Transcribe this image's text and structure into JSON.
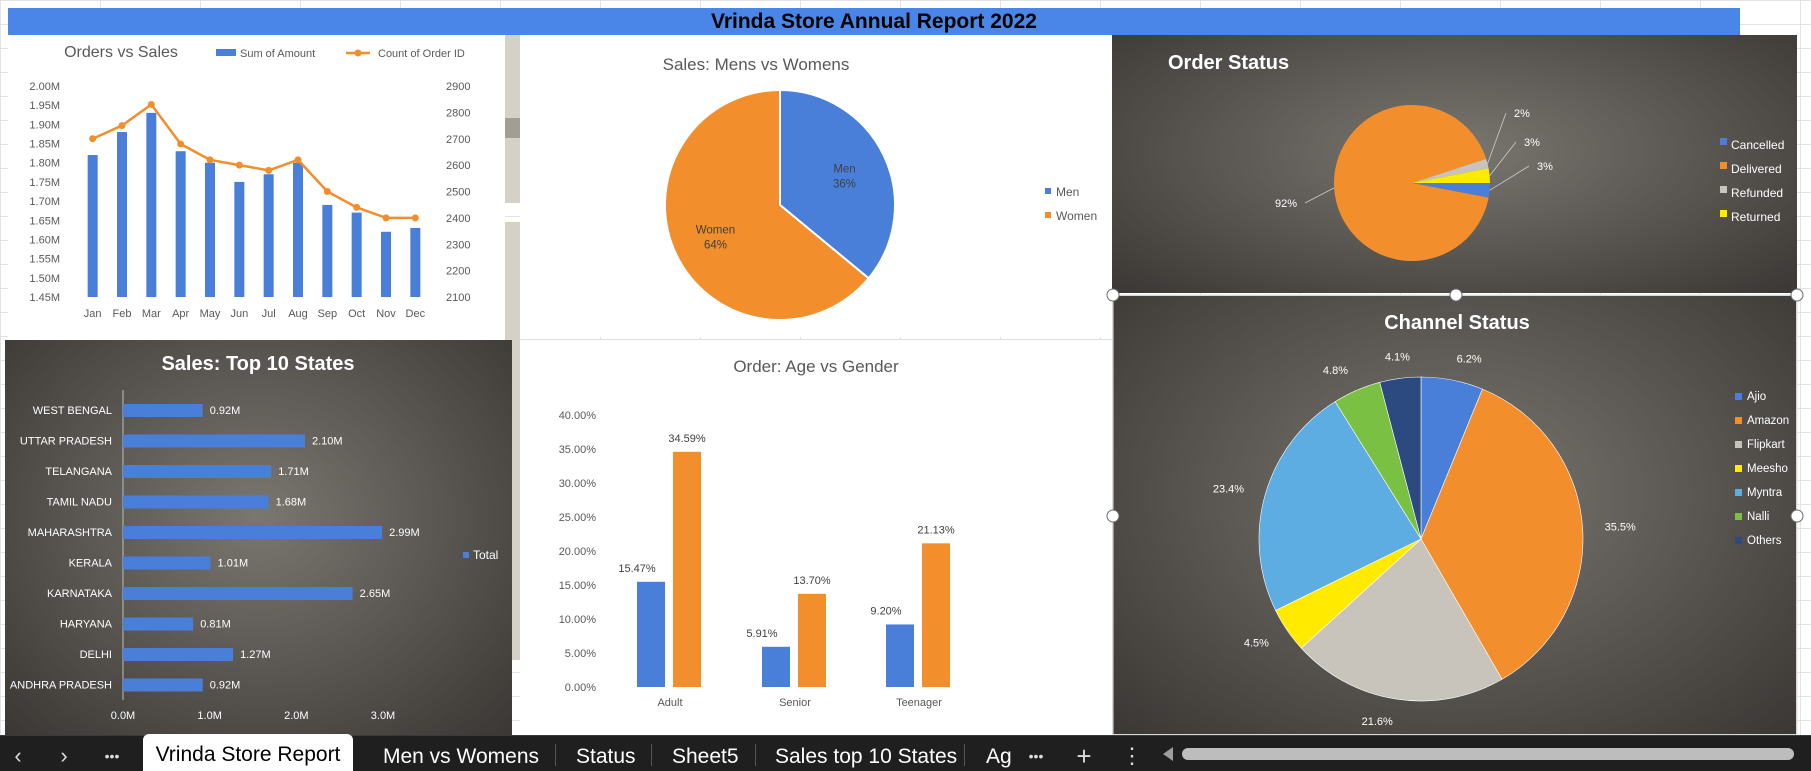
{
  "report_title": "Vrinda Store Annual Report 2022",
  "tabs": [
    "Vrinda Store Report",
    "Men vs Womens",
    "Status",
    "Sheet5",
    "Sales top 10 States",
    "Ag"
  ],
  "nav": {
    "prev": "‹",
    "next": "›",
    "more": "•••",
    "more2": "•••",
    "add": "+",
    "options": "⋮"
  },
  "colors": {
    "blue": "#4a7fd9",
    "orange": "#f28e2b",
    "gray": "#c9c4bb",
    "yellow": "#ffea00",
    "lightblue": "#5dade2",
    "green": "#7ac143",
    "navy": "#2c4a80"
  },
  "chart_data": [
    {
      "id": "orders_vs_sales",
      "type": "bar",
      "title": "Orders vs Sales",
      "categories": [
        "Jan",
        "Feb",
        "Mar",
        "Apr",
        "May",
        "Jun",
        "Jul",
        "Aug",
        "Sep",
        "Oct",
        "Nov",
        "Dec"
      ],
      "series": [
        {
          "name": "Sum of Amount",
          "type": "bar",
          "axis": "left",
          "values": [
            1.82,
            1.88,
            1.93,
            1.83,
            1.8,
            1.75,
            1.77,
            1.8,
            1.69,
            1.67,
            1.62,
            1.63
          ]
        },
        {
          "name": "Count of Order ID",
          "type": "line",
          "axis": "right",
          "values": [
            2700,
            2750,
            2830,
            2680,
            2620,
            2600,
            2580,
            2620,
            2500,
            2440,
            2400,
            2400
          ]
        }
      ],
      "y_left_ticks": [
        "2.00M",
        "1.95M",
        "1.90M",
        "1.85M",
        "1.80M",
        "1.75M",
        "1.70M",
        "1.65M",
        "1.60M",
        "1.55M",
        "1.50M",
        "1.45M"
      ],
      "ylim_left": [
        1.45,
        2.0
      ],
      "y_right_ticks": [
        "2900",
        "2800",
        "2700",
        "2600",
        "2500",
        "2400",
        "2300",
        "2200",
        "2100"
      ],
      "ylim_right": [
        2100,
        2900
      ],
      "legend": "top"
    },
    {
      "id": "sales_men_women",
      "type": "pie",
      "title": "Sales: Mens vs Womens",
      "slices": [
        {
          "label": "Men",
          "value": 36,
          "text": "36%"
        },
        {
          "label": "Women",
          "value": 64,
          "text": "64%"
        }
      ],
      "legend": "right"
    },
    {
      "id": "order_status",
      "type": "pie",
      "title": "Order Status",
      "slices": [
        {
          "label": "Cancelled",
          "value": 3,
          "text": "3%"
        },
        {
          "label": "Delivered",
          "value": 92,
          "text": "92%"
        },
        {
          "label": "Refunded",
          "value": 2,
          "text": "2%"
        },
        {
          "label": "Returned",
          "value": 3,
          "text": "3%"
        }
      ],
      "legend": "right"
    },
    {
      "id": "top_states",
      "type": "bar",
      "orientation": "horizontal",
      "title": "Sales: Top 10 States",
      "categories": [
        "WEST BENGAL",
        "UTTAR PRADESH",
        "TELANGANA",
        "TAMIL NADU",
        "MAHARASHTRA",
        "KERALA",
        "KARNATAKA",
        "HARYANA",
        "DELHI",
        "ANDHRA PRADESH"
      ],
      "values": [
        0.92,
        2.1,
        1.71,
        1.68,
        2.99,
        1.01,
        2.65,
        0.81,
        1.27,
        0.92
      ],
      "value_labels": [
        "0.92M",
        "2.10M",
        "1.71M",
        "1.68M",
        "2.99M",
        "1.01M",
        "2.65M",
        "0.81M",
        "1.27M",
        "0.92M"
      ],
      "series_name": "Total",
      "x_ticks": [
        "0.0M",
        "1.0M",
        "2.0M",
        "3.0M"
      ],
      "xlim": [
        0,
        3.0
      ],
      "legend": "right"
    },
    {
      "id": "age_vs_gender",
      "type": "bar",
      "title": "Order: Age vs Gender",
      "categories": [
        "Adult",
        "Senior",
        "Teenager"
      ],
      "series": [
        {
          "name": "Men",
          "values": [
            15.47,
            5.91,
            9.2
          ],
          "labels": [
            "15.47%",
            "5.91%",
            "9.20%"
          ]
        },
        {
          "name": "Women",
          "values": [
            34.59,
            13.7,
            21.13
          ],
          "labels": [
            "34.59%",
            "13.70%",
            "21.13%"
          ]
        }
      ],
      "y_ticks": [
        "40.00%",
        "35.00%",
        "30.00%",
        "25.00%",
        "20.00%",
        "15.00%",
        "10.00%",
        "5.00%",
        "0.00%"
      ],
      "ylim": [
        0,
        40
      ]
    },
    {
      "id": "channel_status",
      "type": "pie",
      "title": "Channel Status",
      "slices": [
        {
          "label": "Ajio",
          "value": 6.2,
          "text": "6.2%"
        },
        {
          "label": "Amazon",
          "value": 35.5,
          "text": "35.5%"
        },
        {
          "label": "Flipkart",
          "value": 21.6,
          "text": "21.6%"
        },
        {
          "label": "Meesho",
          "value": 4.5,
          "text": "4.5%"
        },
        {
          "label": "Myntra",
          "value": 23.4,
          "text": "23.4%"
        },
        {
          "label": "Nalli",
          "value": 4.8,
          "text": "4.8%"
        },
        {
          "label": "Others",
          "value": 4.1,
          "text": "4.1%"
        }
      ],
      "legend": "right"
    }
  ]
}
